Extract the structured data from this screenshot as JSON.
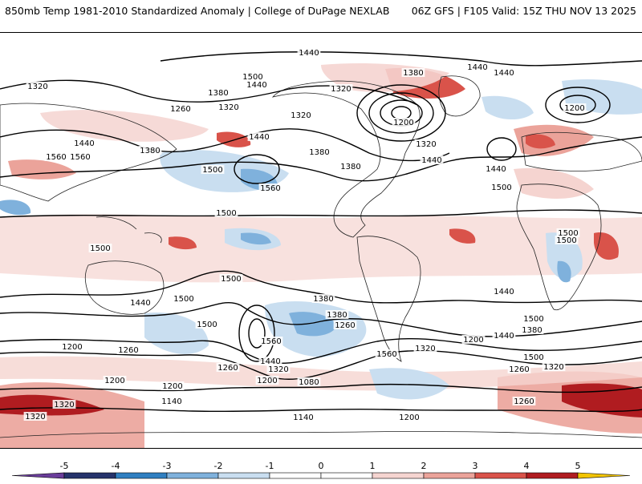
{
  "header": {
    "title": "850mb Temp 1981-2010 Standardized Anomaly | College of DuPage NEXLAB",
    "run_info": "06Z GFS | F105 Valid: 15Z THU NOV 13 2025"
  },
  "colors": {
    "neg5": "#6a3d9a",
    "neg4": "#25336b",
    "neg3": "#2f7fc1",
    "neg2": "#7fb1dc",
    "neg1": "#c9def0",
    "zero": "#ffffff",
    "pos1": "#f5d4d0",
    "pos2": "#eba39a",
    "pos3": "#d9534a",
    "pos4": "#b01c20",
    "pos5": "#6e0b0e",
    "pos_extreme": "#f2c400",
    "land_outline": "#222222",
    "contour": "#000000"
  },
  "colorbar": {
    "ticks": [
      "-5",
      "-4",
      "-3",
      "-2",
      "-1",
      "0",
      "1",
      "2",
      "3",
      "4",
      "5"
    ]
  },
  "contour_labels": [
    "1440",
    "1500",
    "1440",
    "1380",
    "1440",
    "1440",
    "1320",
    "1380",
    "1320",
    "1260",
    "1320",
    "1320",
    "1200",
    "1200",
    "1320",
    "1440",
    "1440",
    "1560",
    "1560",
    "1380",
    "1500",
    "1380",
    "1440",
    "1500",
    "1560",
    "1380",
    "1440",
    "1500",
    "1500",
    "1500",
    "1500",
    "1500",
    "1440",
    "1500",
    "1380",
    "1500",
    "1560",
    "1440",
    "1380",
    "1260",
    "1200",
    "1260",
    "1200",
    "1440",
    "1320",
    "1200",
    "1260",
    "1200",
    "1320",
    "1080",
    "1140",
    "1200",
    "1140",
    "1320",
    "1320",
    "1260",
    "1560",
    "1260",
    "1320",
    "1500",
    "1380",
    "1440",
    "1500",
    "1200"
  ]
}
